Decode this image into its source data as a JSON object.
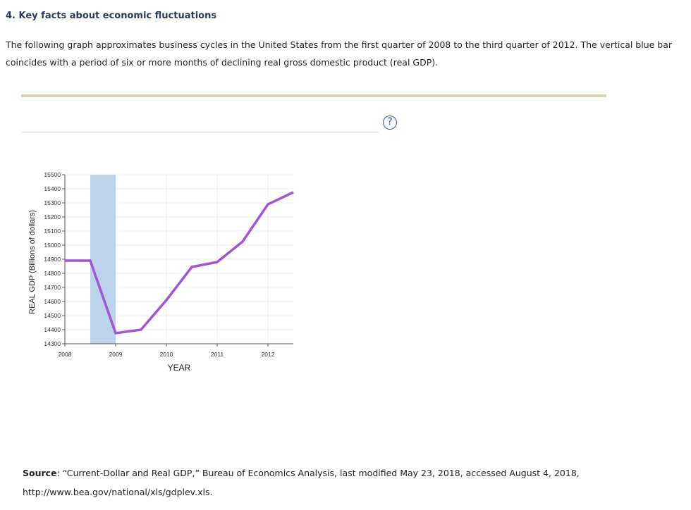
{
  "question": {
    "title": "4. Key facts about economic fluctuations",
    "intro": "The following graph approximates business cycles in the United States from the first quarter of 2008 to the third quarter of 2012. The vertical blue bar coincides with a period of six or more months of declining real gross domestic product (real GDP)."
  },
  "help_icon": {
    "glyph": "?",
    "name": "question-mark-icon"
  },
  "chart_data": {
    "type": "line",
    "xlabel": "YEAR",
    "ylabel": "REAL GDP (Billions of dollars)",
    "xlim": [
      2008,
      2012.5
    ],
    "ylim": [
      14300,
      15500
    ],
    "x_ticks": [
      "2008",
      "2009",
      "2010",
      "2011",
      "2012"
    ],
    "y_ticks": [
      "14300",
      "14400",
      "14500",
      "14600",
      "14700",
      "14800",
      "14900",
      "15000",
      "15100",
      "15200",
      "15300",
      "15400",
      "15500"
    ],
    "series": [
      {
        "color": "#a155d6",
        "x": [
          2008,
          2008.5,
          2009,
          2009.5,
          2010,
          2010.5,
          2011,
          2011.5,
          2012,
          2012.5
        ],
        "values": [
          14890,
          14890,
          14375,
          14400,
          14610,
          14845,
          14880,
          15025,
          15290,
          15375
        ]
      }
    ],
    "recession_band": {
      "x_start": 2008.5,
      "x_end": 2009,
      "color": "#bcd3ea"
    },
    "grid": true
  },
  "source": {
    "label": "Source",
    "text": ": “Current-Dollar and Real GDP,” Bureau of Economics Analysis, last modified May 23, 2018, accessed August 4, 2018, http://www.bea.gov/national/xls/gdplev.xls."
  }
}
